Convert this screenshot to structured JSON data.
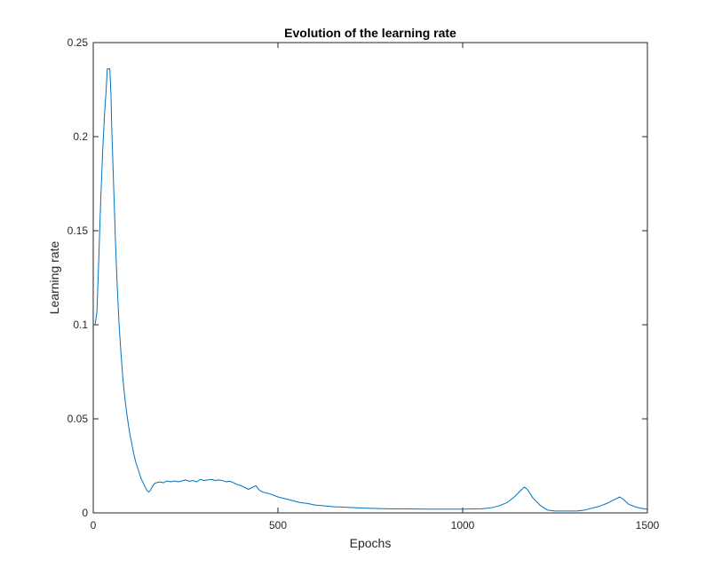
{
  "chart_data": {
    "type": "line",
    "title": "Evolution of the learning rate",
    "xlabel": "Epochs",
    "ylabel": "Learning rate",
    "xlim": [
      0,
      1500
    ],
    "ylim": [
      0,
      0.25
    ],
    "xticks": [
      0,
      500,
      1000,
      1500
    ],
    "xtick_labels": [
      "0",
      "500",
      "1000",
      "1500"
    ],
    "yticks": [
      0,
      0.05,
      0.1,
      0.15,
      0.2,
      0.25
    ],
    "ytick_labels": [
      "0",
      "0.05",
      "0.1",
      "0.15",
      "0.2",
      "0.25"
    ],
    "grid": false,
    "line_color": "#0072BD",
    "series": [
      {
        "x": [
          1,
          5,
          10,
          15,
          20,
          25,
          30,
          35,
          38,
          40,
          42,
          45,
          48,
          50,
          55,
          60,
          65,
          70,
          75,
          80,
          85,
          90,
          95,
          100,
          105,
          110,
          115,
          120,
          125,
          130,
          135,
          140,
          145,
          150,
          155,
          160,
          165,
          170,
          180,
          190,
          200,
          210,
          220,
          230,
          240,
          250,
          260,
          270,
          280,
          290,
          300,
          310,
          320,
          330,
          340,
          350,
          360,
          370,
          380,
          390,
          400,
          410,
          420,
          430,
          440,
          450,
          460,
          470,
          480,
          500,
          520,
          540,
          560,
          580,
          600,
          650,
          700,
          750,
          800,
          850,
          900,
          950,
          1000,
          1050,
          1080,
          1100,
          1120,
          1140,
          1150,
          1160,
          1167,
          1175,
          1190,
          1210,
          1230,
          1250,
          1270,
          1290,
          1310,
          1330,
          1350,
          1370,
          1390,
          1410,
          1425,
          1435,
          1450,
          1470,
          1490,
          1500
        ],
        "y": [
          0.1,
          0.1,
          0.107,
          0.135,
          0.165,
          0.19,
          0.21,
          0.225,
          0.236,
          0.236,
          0.236,
          0.236,
          0.222,
          0.205,
          0.175,
          0.145,
          0.12,
          0.1,
          0.085,
          0.072,
          0.062,
          0.054,
          0.047,
          0.041,
          0.036,
          0.031,
          0.027,
          0.024,
          0.021,
          0.018,
          0.016,
          0.014,
          0.012,
          0.011,
          0.012,
          0.014,
          0.0155,
          0.016,
          0.0165,
          0.016,
          0.017,
          0.0165,
          0.017,
          0.0165,
          0.017,
          0.0175,
          0.0168,
          0.0172,
          0.0165,
          0.0178,
          0.0172,
          0.0175,
          0.0178,
          0.0172,
          0.0175,
          0.0172,
          0.0165,
          0.0168,
          0.016,
          0.015,
          0.0145,
          0.0135,
          0.0125,
          0.0135,
          0.0145,
          0.012,
          0.011,
          0.0105,
          0.01,
          0.0085,
          0.0075,
          0.0065,
          0.0055,
          0.005,
          0.0042,
          0.0033,
          0.0028,
          0.0024,
          0.0022,
          0.0021,
          0.002,
          0.002,
          0.002,
          0.0022,
          0.0028,
          0.0038,
          0.0055,
          0.0085,
          0.0105,
          0.0125,
          0.0137,
          0.0125,
          0.008,
          0.004,
          0.0015,
          0.001,
          0.001,
          0.001,
          0.001,
          0.0015,
          0.0025,
          0.0035,
          0.005,
          0.007,
          0.0085,
          0.0072,
          0.0045,
          0.003,
          0.0022,
          0.002
        ]
      }
    ]
  }
}
